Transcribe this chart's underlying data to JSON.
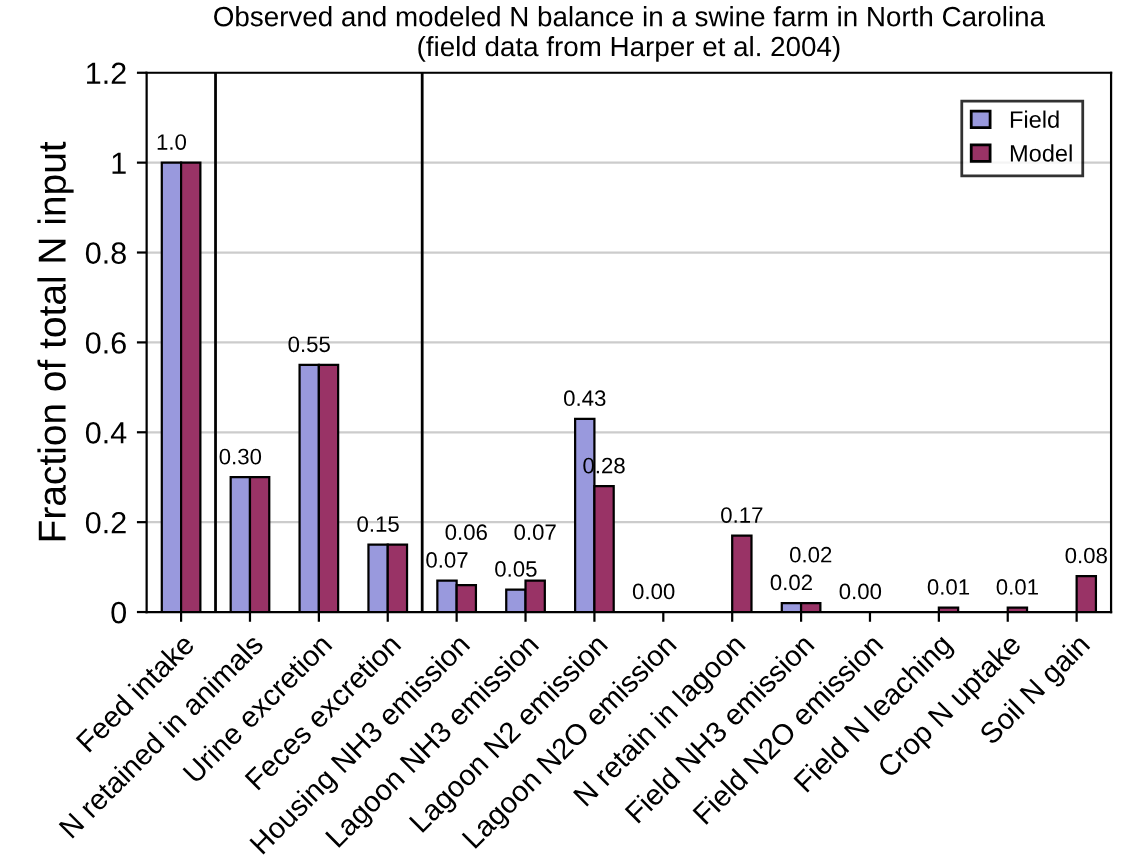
{
  "chart_data": {
    "type": "bar",
    "title": "Observed and modeled N balance in a swine farm in North Carolina\n(field data from Harper et al. 2004)",
    "ylabel": "Fraction of total N input",
    "categories": [
      "Feed intake",
      "N retained in animals",
      "Urine excretion",
      "Feces excretion",
      "Housing NH3 emission",
      "Lagoon NH3 emission",
      "Lagoon N2 emission",
      "Lagoon N2O emission",
      "N retain in lagoon",
      "Field NH3 emission",
      "Field N2O emission",
      "Field N leaching",
      "Crop N uptake",
      "Soil N gain"
    ],
    "series": [
      {
        "name": "Field",
        "color": "#9999dd",
        "values": [
          1.0,
          0.3,
          0.55,
          0.15,
          0.07,
          0.05,
          0.43,
          0.0,
          0.0,
          0.02,
          0.0,
          0.0,
          0.0,
          0.0
        ],
        "value_labels": [
          "1.0",
          "0.30",
          "0.55",
          "0.15",
          "0.07",
          "0.05",
          "0.43",
          "0.00",
          null,
          "0.02",
          "0.00",
          null,
          null,
          null
        ]
      },
      {
        "name": "Model",
        "color": "#993366",
        "values": [
          1.0,
          0.3,
          0.55,
          0.15,
          0.06,
          0.07,
          0.28,
          0.0,
          0.17,
          0.02,
          0.0,
          0.01,
          0.01,
          0.08
        ],
        "value_labels": [
          null,
          null,
          null,
          null,
          "0.06",
          "0.07",
          "0.28",
          null,
          "0.17",
          "0.02",
          null,
          "0.01",
          "0.01",
          "0.08"
        ]
      }
    ],
    "ylim": [
      0,
      1.2
    ],
    "yticks": [
      0,
      0.2,
      0.4,
      0.6,
      0.8,
      1,
      1.2
    ],
    "grid": "y",
    "legend": "top right"
  }
}
